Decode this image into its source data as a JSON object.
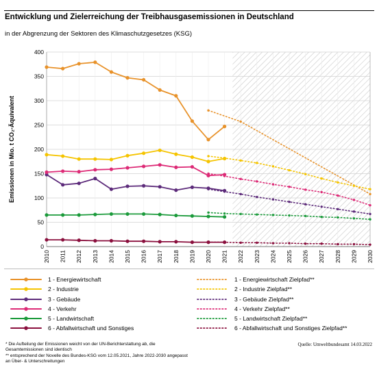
{
  "header": {
    "title": "Entwicklung und Zielerreichung der Treibhausgasemissionen in Deutschland",
    "subtitle": "in der Abgrenzung der Sektoren des Klimaschutzgesetzes (KSG)"
  },
  "chart_data": {
    "type": "line",
    "ylabel": "Emissionen in Mio. t CO₂-Äquivalent",
    "ylim": [
      0,
      400
    ],
    "yticks": [
      "0",
      "50",
      "100",
      "150",
      "200",
      "250",
      "300",
      "350",
      "400"
    ],
    "xticks": [
      "2010",
      "2011",
      "2012",
      "2013",
      "2014",
      "2015",
      "2016",
      "2017",
      "2018",
      "2019",
      "2020",
      "2021",
      "2022",
      "2023",
      "2024",
      "2025",
      "2026",
      "2027",
      "2028",
      "2029",
      "2030"
    ],
    "grid": "horizontal",
    "legend_position": "bottom",
    "series": [
      {
        "name": "1 - Energiewirtschaft",
        "color": "#e8922a",
        "style": "solid",
        "x": [
          2010,
          2011,
          2012,
          2013,
          2014,
          2015,
          2016,
          2017,
          2018,
          2019,
          2020,
          2021
        ],
        "values": [
          369,
          366,
          376,
          379,
          359,
          347,
          343,
          322,
          310,
          258,
          220,
          247
        ]
      },
      {
        "name": "2 - Industrie",
        "color": "#f5c400",
        "style": "solid",
        "x": [
          2010,
          2011,
          2012,
          2013,
          2014,
          2015,
          2016,
          2017,
          2018,
          2019,
          2020,
          2021
        ],
        "values": [
          189,
          186,
          180,
          180,
          179,
          187,
          192,
          198,
          190,
          184,
          175,
          181
        ]
      },
      {
        "name": "3 - Gebäude",
        "color": "#5c2a7a",
        "style": "solid",
        "x": [
          2010,
          2011,
          2012,
          2013,
          2014,
          2015,
          2016,
          2017,
          2018,
          2019,
          2020,
          2021
        ],
        "values": [
          148,
          127,
          130,
          140,
          118,
          124,
          125,
          123,
          116,
          122,
          120,
          115
        ]
      },
      {
        "name": "4 - Verkehr",
        "color": "#dd2a76",
        "style": "solid",
        "x": [
          2010,
          2011,
          2012,
          2013,
          2014,
          2015,
          2016,
          2017,
          2018,
          2019,
          2020,
          2021
        ],
        "values": [
          153,
          155,
          154,
          158,
          159,
          162,
          165,
          168,
          163,
          164,
          146,
          148
        ]
      },
      {
        "name": "5 - Landwirtschaft",
        "color": "#1a9a3a",
        "style": "solid",
        "x": [
          2010,
          2011,
          2012,
          2013,
          2014,
          2015,
          2016,
          2017,
          2018,
          2019,
          2020,
          2021
        ],
        "values": [
          65,
          65,
          65,
          66,
          67,
          67,
          67,
          66,
          64,
          63,
          62,
          61
        ]
      },
      {
        "name": "6 - Abfallwirtschaft und Sonstiges",
        "color": "#8a0f3d",
        "style": "solid",
        "x": [
          2010,
          2011,
          2012,
          2013,
          2014,
          2015,
          2016,
          2017,
          2018,
          2019,
          2020,
          2021
        ],
        "values": [
          14,
          14,
          13,
          12,
          12,
          11,
          11,
          10,
          10,
          9,
          9,
          9
        ]
      },
      {
        "name": "1 - Energiewirtschaft Zielpfad**",
        "color": "#e8922a",
        "style": "dotted",
        "x": [
          2020,
          2022,
          2030
        ],
        "values": [
          280,
          257,
          108
        ]
      },
      {
        "name": "2 - Industrie Zielpfad**",
        "color": "#f5c400",
        "style": "dotted",
        "x": [
          2020,
          2021,
          2022,
          2023,
          2024,
          2025,
          2026,
          2027,
          2028,
          2029,
          2030
        ],
        "values": [
          186,
          182,
          177,
          172,
          165,
          157,
          149,
          140,
          132,
          125,
          118
        ]
      },
      {
        "name": "3 - Gebäude Zielpfad**",
        "color": "#5c2a7a",
        "style": "dotted",
        "x": [
          2020,
          2021,
          2022,
          2023,
          2024,
          2025,
          2026,
          2027,
          2028,
          2029,
          2030
        ],
        "values": [
          118,
          113,
          108,
          102,
          97,
          92,
          87,
          82,
          77,
          72,
          67
        ]
      },
      {
        "name": "4 - Verkehr Zielpfad**",
        "color": "#dd2a76",
        "style": "dotted",
        "x": [
          2020,
          2021,
          2022,
          2023,
          2024,
          2025,
          2026,
          2027,
          2028,
          2029,
          2030
        ],
        "values": [
          150,
          145,
          139,
          134,
          128,
          123,
          117,
          112,
          105,
          96,
          85
        ]
      },
      {
        "name": "5 - Landwirtschaft Zielpfad**",
        "color": "#1a9a3a",
        "style": "dotted",
        "x": [
          2020,
          2021,
          2022,
          2023,
          2024,
          2025,
          2026,
          2027,
          2028,
          2029,
          2030
        ],
        "values": [
          70,
          68,
          67,
          66,
          65,
          64,
          63,
          61,
          60,
          58,
          56
        ]
      },
      {
        "name": "6 - Abfallwirtschaft und Sonstiges Zielpfad**",
        "color": "#8a0f3d",
        "style": "dotted",
        "x": [
          2020,
          2021,
          2022,
          2023,
          2024,
          2025,
          2026,
          2027,
          2028,
          2029,
          2030
        ],
        "values": [
          9,
          9,
          8,
          8,
          7,
          7,
          6,
          6,
          5,
          5,
          4
        ]
      }
    ]
  },
  "footnotes": {
    "line1": "* Die Aufteilung der Emissionen weicht von der UN-Berichterstattung ab, die",
    "line2": "Gesamtemissionen sind identisch",
    "line3": "** entsprechend der Novelle des Bundes-KSG vom 12.05.2021, Jahre 2022-2030 angepasst",
    "line4": "an Über- & Unterschreitungen"
  },
  "source": "Quelle: Umweltbundesamt  14.03.2022"
}
